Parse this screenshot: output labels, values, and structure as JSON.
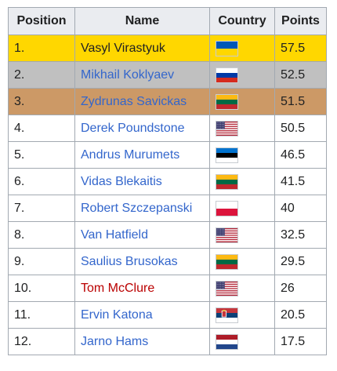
{
  "headers": {
    "position": "Position",
    "name": "Name",
    "country": "Country",
    "points": "Points"
  },
  "rows": [
    {
      "position": "1.",
      "name": "Vasyl Virastyuk",
      "flag": "ukraine-flag-icon",
      "points": "57.5",
      "medal": "gold",
      "link": "plain"
    },
    {
      "position": "2.",
      "name": "Mikhail Koklyaev",
      "flag": "russia-flag-icon",
      "points": "52.5",
      "medal": "silver",
      "link": "blue"
    },
    {
      "position": "3.",
      "name": "Zydrunas Savickas",
      "flag": "lithuania-flag-icon",
      "points": "51.5",
      "medal": "bronze",
      "link": "blue"
    },
    {
      "position": "4.",
      "name": "Derek Poundstone",
      "flag": "usa-flag-icon",
      "points": "50.5",
      "medal": "",
      "link": "blue"
    },
    {
      "position": "5.",
      "name": "Andrus Murumets",
      "flag": "estonia-flag-icon",
      "points": "46.5",
      "medal": "",
      "link": "blue"
    },
    {
      "position": "6.",
      "name": "Vidas Blekaitis",
      "flag": "lithuania-flag-icon",
      "points": "41.5",
      "medal": "",
      "link": "blue"
    },
    {
      "position": "7.",
      "name": "Robert Szczepanski",
      "flag": "poland-flag-icon",
      "points": "40",
      "medal": "",
      "link": "blue"
    },
    {
      "position": "8.",
      "name": "Van Hatfield",
      "flag": "usa-flag-icon",
      "points": "32.5",
      "medal": "",
      "link": "blue"
    },
    {
      "position": "9.",
      "name": "Saulius Brusokas",
      "flag": "lithuania-flag-icon",
      "points": "29.5",
      "medal": "",
      "link": "blue"
    },
    {
      "position": "10.",
      "name": "Tom McClure",
      "flag": "usa-flag-icon",
      "points": "26",
      "medal": "",
      "link": "red"
    },
    {
      "position": "11.",
      "name": "Ervin Katona",
      "flag": "serbia-flag-icon",
      "points": "20.5",
      "medal": "",
      "link": "blue"
    },
    {
      "position": "12.",
      "name": "Jarno Hams",
      "flag": "netherlands-flag-icon",
      "points": "17.5",
      "medal": "",
      "link": "blue"
    }
  ],
  "colors": {
    "gold": "#ffd700",
    "silver": "#c0c0c0",
    "bronze": "#cc9966",
    "link": "#3366cc",
    "redlink": "#ba0000",
    "header_bg": "#eaecf0"
  }
}
